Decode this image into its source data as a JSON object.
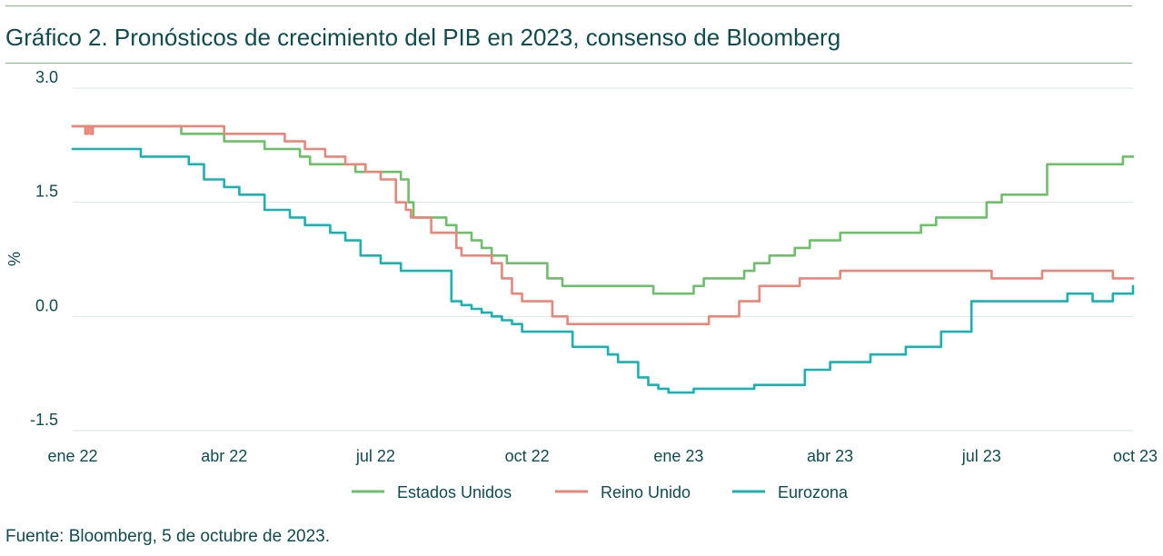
{
  "page": {
    "title": "Gráfico 2. Pronósticos de crecimiento del PIB en 2023, consenso de Bloomberg",
    "source": "Fuente: Bloomberg, 5 de octubre de 2023."
  },
  "chart_data": {
    "type": "line",
    "title": "Gráfico 2. Pronósticos de crecimiento del PIB en 2023, consenso de Bloomberg",
    "ylabel": "%",
    "xlabel": "",
    "ylim": [
      -1.5,
      3.0
    ],
    "xlim": [
      0,
      21
    ],
    "yticks": [
      3.0,
      1.5,
      0.0,
      -1.5
    ],
    "ytick_labels": [
      "3.0",
      "1.5",
      "0.0",
      "-1.5"
    ],
    "xticks": [
      0,
      3,
      6,
      9,
      12,
      15,
      18,
      21
    ],
    "xtick_labels": [
      "ene 22",
      "abr 22",
      "jul 22",
      "oct 22",
      "ene 23",
      "abr 23",
      "jul 23",
      "oct 23"
    ],
    "grid": true,
    "legend_position": "bottom",
    "series": [
      {
        "name": "Estados Unidos",
        "color": "#6dbf6a",
        "x": [
          0,
          2.1,
          2.15,
          3.0,
          3.2,
          3.8,
          4.5,
          4.7,
          5.2,
          5.6,
          6.2,
          6.5,
          6.65,
          6.75,
          6.9,
          7.3,
          7.4,
          7.6,
          7.9,
          8.1,
          8.3,
          8.6,
          9.0,
          9.4,
          9.7,
          10.2,
          10.6,
          11.0,
          11.5,
          12.1,
          12.3,
          12.5,
          12.6,
          13.0,
          13.3,
          13.5,
          13.7,
          13.8,
          13.9,
          14.3,
          14.6,
          14.9,
          15.2,
          15.7,
          16.4,
          16.8,
          17.1,
          17.6,
          18.1,
          18.4,
          18.7,
          19.3,
          19.6,
          19.9,
          20.2,
          20.6,
          20.8,
          21.0
        ],
        "values": [
          2.5,
          2.5,
          2.4,
          2.3,
          2.3,
          2.2,
          2.1,
          2.0,
          2.0,
          1.9,
          1.9,
          1.8,
          1.5,
          1.3,
          1.3,
          1.3,
          1.2,
          1.1,
          1.0,
          0.9,
          0.8,
          0.7,
          0.7,
          0.5,
          0.4,
          0.4,
          0.4,
          0.4,
          0.3,
          0.3,
          0.4,
          0.5,
          0.5,
          0.5,
          0.6,
          0.7,
          0.7,
          0.8,
          0.8,
          0.9,
          1.0,
          1.0,
          1.1,
          1.1,
          1.1,
          1.2,
          1.3,
          1.3,
          1.5,
          1.6,
          1.6,
          2.0,
          2.0,
          2.0,
          2.0,
          2.0,
          2.1,
          2.1
        ]
      },
      {
        "name": "Reino Unido",
        "color": "#e9867a",
        "x": [
          0,
          0.25,
          0.3,
          0.35,
          0.4,
          1.0,
          2.8,
          3.0,
          3.9,
          4.2,
          4.6,
          5.0,
          5.4,
          5.8,
          6.1,
          6.4,
          6.6,
          6.7,
          6.85,
          7.1,
          7.4,
          7.6,
          7.7,
          8.0,
          8.3,
          8.5,
          8.7,
          8.9,
          9.2,
          9.5,
          9.8,
          10.4,
          11.0,
          12.0,
          12.3,
          12.6,
          12.8,
          13.2,
          13.6,
          14.0,
          14.4,
          14.8,
          15.2,
          16.0,
          16.5,
          16.9,
          17.3,
          17.8,
          18.2,
          18.8,
          19.2,
          19.7,
          20.1,
          20.6,
          21.0
        ],
        "values": [
          2.5,
          2.4,
          2.5,
          2.4,
          2.5,
          2.5,
          2.5,
          2.4,
          2.4,
          2.3,
          2.2,
          2.1,
          2.0,
          1.9,
          1.8,
          1.5,
          1.4,
          1.3,
          1.3,
          1.1,
          1.1,
          0.9,
          0.8,
          0.8,
          0.7,
          0.5,
          0.3,
          0.2,
          0.2,
          0.0,
          -0.1,
          -0.1,
          -0.1,
          -0.1,
          -0.1,
          0.0,
          0.0,
          0.2,
          0.4,
          0.4,
          0.5,
          0.5,
          0.6,
          0.6,
          0.6,
          0.6,
          0.6,
          0.6,
          0.5,
          0.5,
          0.6,
          0.6,
          0.6,
          0.5,
          0.5
        ]
      },
      {
        "name": "Eurozona",
        "color": "#1bb1b1",
        "x": [
          0,
          1.3,
          1.35,
          2.2,
          2.3,
          2.6,
          3.0,
          3.3,
          3.8,
          4.3,
          4.6,
          5.1,
          5.4,
          5.7,
          6.1,
          6.5,
          6.7,
          6.9,
          7.1,
          7.5,
          7.7,
          7.8,
          7.9,
          8.1,
          8.3,
          8.5,
          8.7,
          8.9,
          9.0,
          9.5,
          9.9,
          10.4,
          10.6,
          10.8,
          11.2,
          11.4,
          11.6,
          11.8,
          12.3,
          13.0,
          13.5,
          14.0,
          14.5,
          15.0,
          15.5,
          15.8,
          16.5,
          17.2,
          17.4,
          17.8,
          18.3,
          18.8,
          19.2,
          19.5,
          19.7,
          19.8,
          20.2,
          20.6,
          21.0
        ],
        "values": [
          2.2,
          2.2,
          2.1,
          2.1,
          2.0,
          1.8,
          1.7,
          1.6,
          1.4,
          1.3,
          1.2,
          1.1,
          1.0,
          0.8,
          0.7,
          0.6,
          0.6,
          0.6,
          0.6,
          0.2,
          0.15,
          0.15,
          0.1,
          0.05,
          0.0,
          -0.05,
          -0.1,
          -0.2,
          -0.2,
          -0.2,
          -0.4,
          -0.4,
          -0.5,
          -0.6,
          -0.8,
          -0.9,
          -0.95,
          -1.0,
          -0.95,
          -0.95,
          -0.9,
          -0.9,
          -0.7,
          -0.6,
          -0.6,
          -0.5,
          -0.4,
          -0.2,
          -0.2,
          0.2,
          0.2,
          0.2,
          0.2,
          0.2,
          0.3,
          0.3,
          0.2,
          0.3,
          0.4
        ]
      }
    ]
  }
}
